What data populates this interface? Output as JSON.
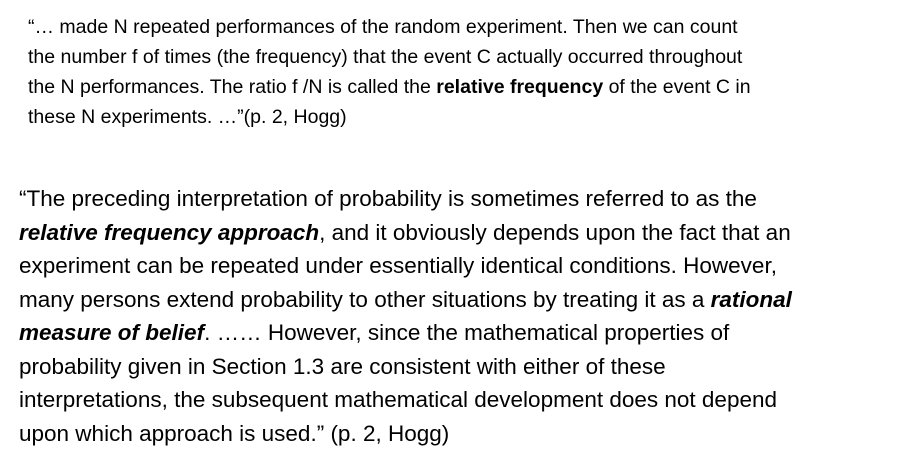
{
  "quote1": {
    "l1": "“… made N repeated performances of the random experiment. Then we can count",
    "l2": "the number f of times (the frequency) that the event C actually occurred throughout",
    "l3a": "the N performances. The ratio f /N is called the ",
    "l3b": "relative frequency",
    "l3c": " of the event C in",
    "l4": "these N experiments. …”(p. 2, Hogg)"
  },
  "quote2": {
    "l1": "“The preceding interpretation of probability is sometimes referred to as the",
    "l2a": "relative frequency approach",
    "l2b": ", and it obviously depends upon the fact that an",
    "l3": "experiment can be repeated under essentially identical conditions. However,",
    "l4a": "many persons extend probability to other situations by treating it as a ",
    "l4b": "rational",
    "l5a": "measure of belief",
    "l5b": ". …… However, since the mathematical properties of",
    "l6": "probability given in Section 1.3 are consistent with either of these",
    "l7": "interpretations, the subsequent mathematical development does not depend",
    "l8": "upon which approach is used.” (p. 2, Hogg)"
  }
}
